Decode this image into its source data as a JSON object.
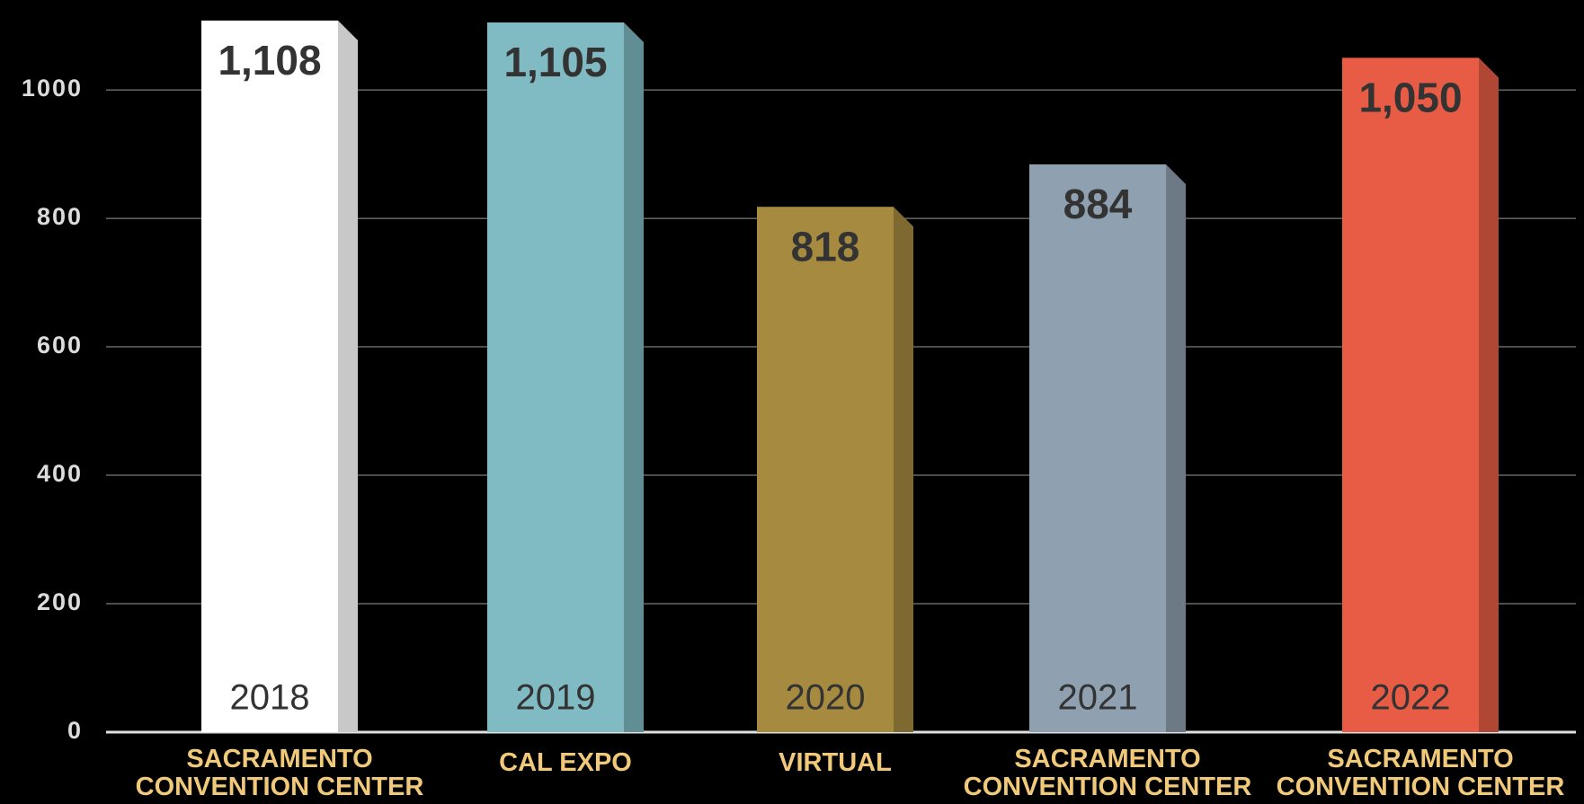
{
  "chart_data": {
    "type": "bar",
    "categories": [
      "SACRAMENTO CONVENTION CENTER",
      "CAL EXPO",
      "VIRTUAL",
      "SACRAMENTO CONVENTION CENTER",
      "SACRAMENTO CONVENTION CENTER"
    ],
    "years": [
      "2018",
      "2019",
      "2020",
      "2021",
      "2022"
    ],
    "values": [
      1108,
      1105,
      818,
      884,
      1050
    ],
    "value_labels": [
      "1,108",
      "1,105",
      "818",
      "884",
      "1,050"
    ],
    "colors": [
      "#ffffff",
      "#80bbc3",
      "#a68a40",
      "#8fa0b0",
      "#e85c45"
    ],
    "ylim": [
      0,
      1140
    ],
    "yticks": [
      0,
      200,
      400,
      600,
      800,
      1000
    ],
    "grid": true
  }
}
